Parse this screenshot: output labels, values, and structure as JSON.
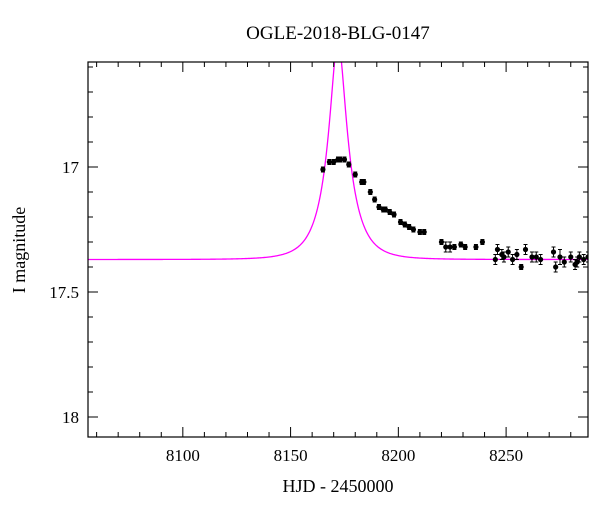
{
  "chart_data": {
    "type": "scatter",
    "title": "OGLE-2018-BLG-0147",
    "xlabel": "HJD - 2450000",
    "ylabel": "I magnitude",
    "xlim": [
      8056,
      8288
    ],
    "ylim": [
      18.08,
      16.58
    ],
    "y_inverted": true,
    "x_major_ticks": [
      8100,
      8150,
      8200,
      8250
    ],
    "x_minor_step": 10,
    "y_major_ticks": [
      17,
      17.5,
      18
    ],
    "y_tick_labels": [
      "17",
      "17.5",
      "18"
    ],
    "y_minor_step": 0.1,
    "grid": false,
    "colors": {
      "model": "#ff00ff",
      "data": "#000000"
    },
    "series": [
      {
        "kind": "model_curve",
        "model": {
          "t0": 8172,
          "u0": 0.3,
          "tE": 11,
          "fs": 0.505,
          "Ibase": 17.37
        }
      },
      {
        "kind": "data_points",
        "x": [
          8165,
          8168,
          8170,
          8172,
          8173,
          8175,
          8177,
          8180,
          8183,
          8184,
          8187,
          8189,
          8191,
          8193,
          8194,
          8196,
          8198,
          8201,
          8203,
          8205,
          8207,
          8210,
          8212,
          8220,
          8222,
          8224,
          8226,
          8229,
          8231,
          8236,
          8239,
          8245,
          8246,
          8248,
          8249,
          8251,
          8253,
          8255,
          8257,
          8259,
          8262,
          8264,
          8266,
          8272,
          8273,
          8275,
          8277,
          8280,
          8282,
          8283,
          8284,
          8286,
          8288
        ],
        "y": [
          17.01,
          16.98,
          16.98,
          16.97,
          16.97,
          16.97,
          16.99,
          17.03,
          17.06,
          17.06,
          17.1,
          17.13,
          17.16,
          17.17,
          17.17,
          17.18,
          17.19,
          17.22,
          17.23,
          17.24,
          17.25,
          17.26,
          17.26,
          17.3,
          17.32,
          17.32,
          17.32,
          17.31,
          17.32,
          17.32,
          17.3,
          17.37,
          17.33,
          17.35,
          17.36,
          17.34,
          17.37,
          17.35,
          17.4,
          17.33,
          17.36,
          17.36,
          17.37,
          17.34,
          17.4,
          17.36,
          17.38,
          17.36,
          17.39,
          17.38,
          17.36,
          17.37,
          17.36
        ],
        "yerr": [
          0.01,
          0.01,
          0.01,
          0.01,
          0.01,
          0.01,
          0.01,
          0.01,
          0.01,
          0.01,
          0.01,
          0.01,
          0.01,
          0.01,
          0.01,
          0.01,
          0.01,
          0.01,
          0.01,
          0.01,
          0.01,
          0.01,
          0.01,
          0.01,
          0.02,
          0.02,
          0.01,
          0.01,
          0.01,
          0.01,
          0.01,
          0.02,
          0.02,
          0.02,
          0.02,
          0.02,
          0.02,
          0.02,
          0.01,
          0.02,
          0.02,
          0.02,
          0.02,
          0.02,
          0.02,
          0.03,
          0.02,
          0.02,
          0.02,
          0.02,
          0.02,
          0.02,
          0.02
        ]
      }
    ]
  }
}
